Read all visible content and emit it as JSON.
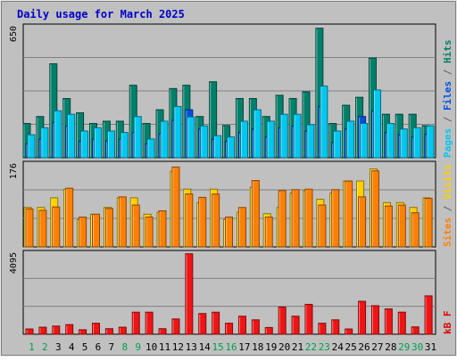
{
  "chart_data": {
    "type": "bar",
    "title": "Daily usage for March 2025",
    "days": [
      {
        "label": "1",
        "weekend": true
      },
      {
        "label": "2",
        "weekend": true
      },
      {
        "label": "3",
        "weekend": false
      },
      {
        "label": "4",
        "weekend": false
      },
      {
        "label": "5",
        "weekend": false
      },
      {
        "label": "6",
        "weekend": false
      },
      {
        "label": "7",
        "weekend": false
      },
      {
        "label": "8",
        "weekend": true
      },
      {
        "label": "9",
        "weekend": true
      },
      {
        "label": "10",
        "weekend": false
      },
      {
        "label": "11",
        "weekend": false
      },
      {
        "label": "12",
        "weekend": false
      },
      {
        "label": "13",
        "weekend": false
      },
      {
        "label": "14",
        "weekend": false
      },
      {
        "label": "15",
        "weekend": true
      },
      {
        "label": "16",
        "weekend": true
      },
      {
        "label": "17",
        "weekend": false
      },
      {
        "label": "18",
        "weekend": false
      },
      {
        "label": "19",
        "weekend": false
      },
      {
        "label": "20",
        "weekend": false
      },
      {
        "label": "21",
        "weekend": false
      },
      {
        "label": "22",
        "weekend": true
      },
      {
        "label": "23",
        "weekend": true
      },
      {
        "label": "24",
        "weekend": false
      },
      {
        "label": "25",
        "weekend": false
      },
      {
        "label": "26",
        "weekend": false
      },
      {
        "label": "27",
        "weekend": false
      },
      {
        "label": "28",
        "weekend": false
      },
      {
        "label": "29",
        "weekend": true
      },
      {
        "label": "30",
        "weekend": true
      },
      {
        "label": "31",
        "weekend": false
      }
    ],
    "panels": [
      {
        "name": "hits-files-pages",
        "max_label": "650",
        "ylim": [
          0,
          650
        ],
        "legend": [
          {
            "text": "Pages",
            "color": "#00c8f0"
          },
          {
            "text": " / ",
            "color": "#606060"
          },
          {
            "text": "Files",
            "color": "#0050e0"
          },
          {
            "text": " / ",
            "color": "#606060"
          },
          {
            "text": "Hits",
            "color": "#00806a"
          }
        ],
        "series": [
          {
            "name": "Hits",
            "color": "#00806a",
            "values": [
              168,
              202,
              460,
              290,
              220,
              168,
              179,
              179,
              355,
              168,
              235,
              339,
              355,
              202,
              372,
              158,
              290,
              290,
              202,
              306,
              290,
              323,
              634,
              168,
              257,
              296,
              488,
              213,
              213,
              213,
              157
            ]
          },
          {
            "name": "Files",
            "color": "#0050e0",
            "values": [
              69,
              92,
              173,
              156,
              82,
              92,
              82,
              92,
              124,
              69,
              118,
              184,
              235,
              141,
              92,
              82,
              124,
              141,
              102,
              147,
              156,
              131,
              251,
              76,
              141,
              202,
              230,
              124,
              113,
              102,
              116
            ]
          },
          {
            "name": "Pages",
            "color": "#00c8f0",
            "values": [
              113,
              147,
              230,
              213,
              131,
              147,
              131,
              124,
              202,
              92,
              179,
              251,
              200,
              156,
              108,
              102,
              179,
              235,
              179,
              213,
              213,
              162,
              351,
              131,
              179,
              168,
              332,
              168,
              141,
              147,
              156
            ]
          }
        ]
      },
      {
        "name": "visits-sites",
        "max_label": "176",
        "ylim": [
          0,
          176
        ],
        "legend": [
          {
            "text": "Sites",
            "color": "#ff8000"
          },
          {
            "text": " / ",
            "color": "#606060"
          },
          {
            "text": "Visits",
            "color": "#ffd000"
          }
        ],
        "series": [
          {
            "name": "Visits",
            "color": "#ffd000",
            "values": [
              82,
              82,
              102,
              120,
              57,
              68,
              82,
              102,
              102,
              68,
              72,
              157,
              120,
              92,
              120,
              57,
              72,
              124,
              69,
              82,
              112,
              117,
              99,
              112,
              137,
              137,
              162,
              92,
              92,
              82,
              102
            ]
          },
          {
            "name": "Sites",
            "color": "#ff8000",
            "values": [
              79,
              76,
              83,
              122,
              62,
              68,
              80,
              104,
              87,
              62,
              75,
              166,
              110,
              103,
              110,
              62,
              82,
              138,
              62,
              117,
              119,
              120,
              87,
              119,
              137,
              104,
              158,
              85,
              87,
              71,
              101
            ]
          }
        ]
      },
      {
        "name": "kbytes",
        "max_label": "4095",
        "ylim": [
          0,
          4095
        ],
        "legend": [
          {
            "text": "kB F",
            "color": "#e00000"
          }
        ],
        "series": [
          {
            "name": "kB F",
            "color": "#f01414",
            "values": [
              261,
              348,
              404,
              476,
              224,
              545,
              276,
              348,
              1091,
              1091,
              276,
              756,
              3976,
              1024,
              1091,
              545,
              891,
              713,
              334,
              1344,
              891,
              1478,
              545,
              713,
              261,
              1628,
              1412,
              1251,
              1091,
              364,
              1898
            ]
          }
        ]
      }
    ]
  }
}
